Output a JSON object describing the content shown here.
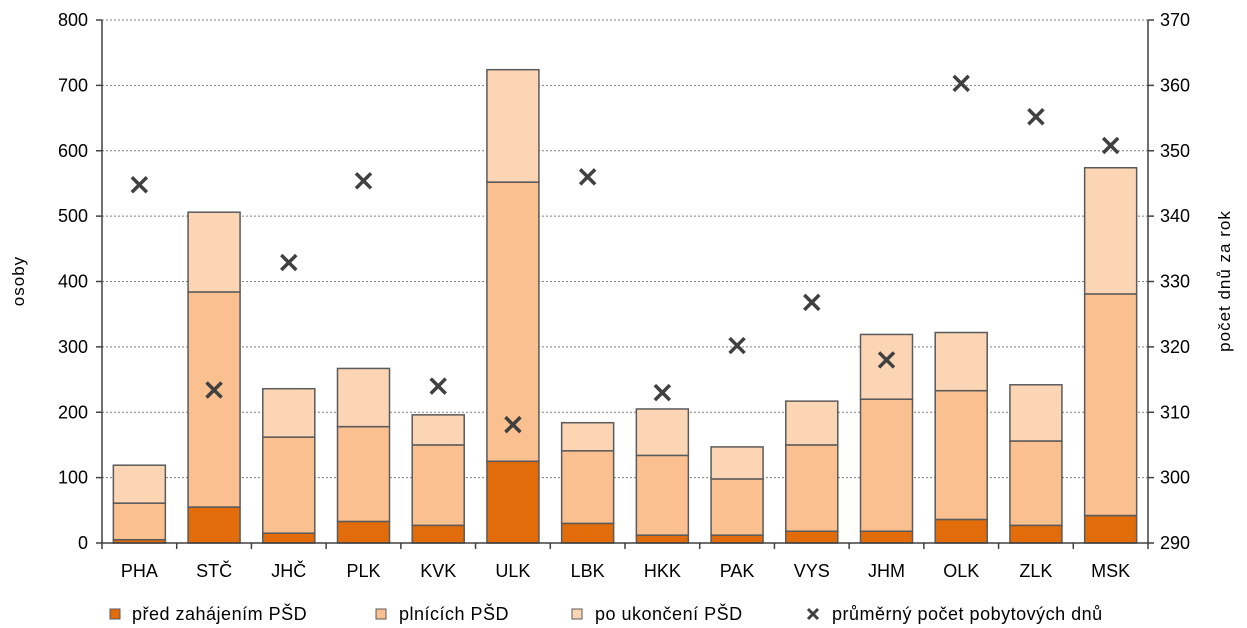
{
  "chart_data": {
    "type": "bar",
    "stacked": true,
    "categories": [
      "PHA",
      "STČ",
      "JHČ",
      "PLK",
      "KVK",
      "ULK",
      "LBK",
      "HKK",
      "PAK",
      "VYS",
      "JHM",
      "OLK",
      "ZLK",
      "MSK"
    ],
    "series": [
      {
        "name": "před zahájením PŠD",
        "axis": "left",
        "color": "#e36c0a",
        "values": [
          5,
          55,
          15,
          33,
          27,
          125,
          30,
          12,
          12,
          18,
          18,
          36,
          27,
          42
        ]
      },
      {
        "name": "plnících PŠD",
        "axis": "left",
        "color": "#fac090",
        "values": [
          56,
          329,
          147,
          145,
          123,
          427,
          111,
          122,
          86,
          132,
          202,
          197,
          129,
          339
        ]
      },
      {
        "name": "po ukončení PŠD",
        "axis": "left",
        "color": "#fcd5b5",
        "values": [
          58,
          122,
          74,
          89,
          46,
          172,
          43,
          71,
          49,
          67,
          99,
          89,
          86,
          193
        ]
      },
      {
        "name": "průměrný počet pobytových dnů",
        "axis": "right",
        "type": "scatter",
        "marker": "x",
        "color": "#404040",
        "values": [
          344.8,
          313.4,
          332.9,
          345.4,
          314.0,
          308.1,
          346.0,
          313.0,
          320.2,
          326.8,
          318.0,
          360.3,
          355.2,
          350.8
        ]
      }
    ],
    "ylabel": "osoby",
    "ylim": [
      0,
      800
    ],
    "yticks": [
      "0",
      "100",
      "200",
      "300",
      "400",
      "500",
      "600",
      "700",
      "800"
    ],
    "y2label": "počet dnů za rok",
    "y2lim": [
      290,
      370
    ],
    "y2ticks": [
      "290",
      "300",
      "310",
      "320",
      "330",
      "340",
      "350",
      "360",
      "370"
    ],
    "grid": true,
    "legend_position": "bottom"
  },
  "colors": {
    "bar_outline": "#5a5a5a",
    "axis": "#404040",
    "grid": "#808080"
  }
}
